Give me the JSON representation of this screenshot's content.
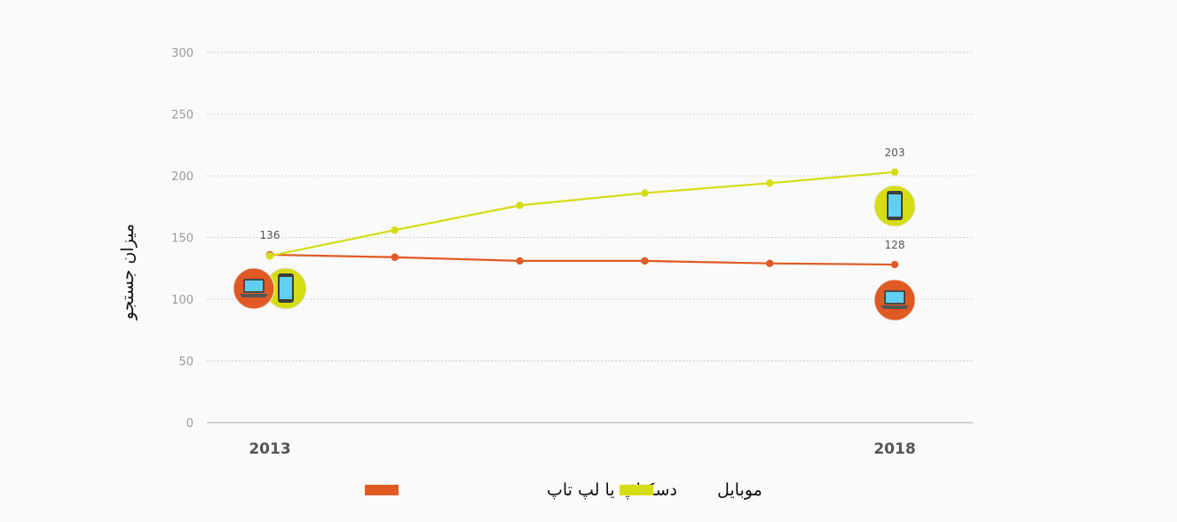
{
  "chart_data": {
    "type": "line",
    "ylabel": "میزان جستجو",
    "xlabel": "",
    "ylim": [
      0,
      300
    ],
    "yticks": [
      0,
      50,
      100,
      150,
      200,
      250,
      300
    ],
    "x": [
      2013,
      2014,
      2015,
      2016,
      2017,
      2018
    ],
    "xtick_labels": [
      "2013",
      "2018"
    ],
    "grid": true,
    "legend_position": "bottom",
    "series": [
      {
        "name": "دسکتاپ یا لپ تاپ",
        "color": "#e05a24",
        "icon": "laptop-icon",
        "values": [
          136,
          134,
          131,
          131,
          129,
          128
        ],
        "labels": [
          "136",
          "",
          "",
          "",
          "",
          "128"
        ]
      },
      {
        "name": "موبایل",
        "color": "#d6dc12",
        "icon": "smartphone-icon",
        "values": [
          135,
          156,
          176,
          186,
          194,
          203
        ],
        "labels": [
          "",
          "",
          "",
          "",
          "",
          "203"
        ]
      }
    ]
  }
}
